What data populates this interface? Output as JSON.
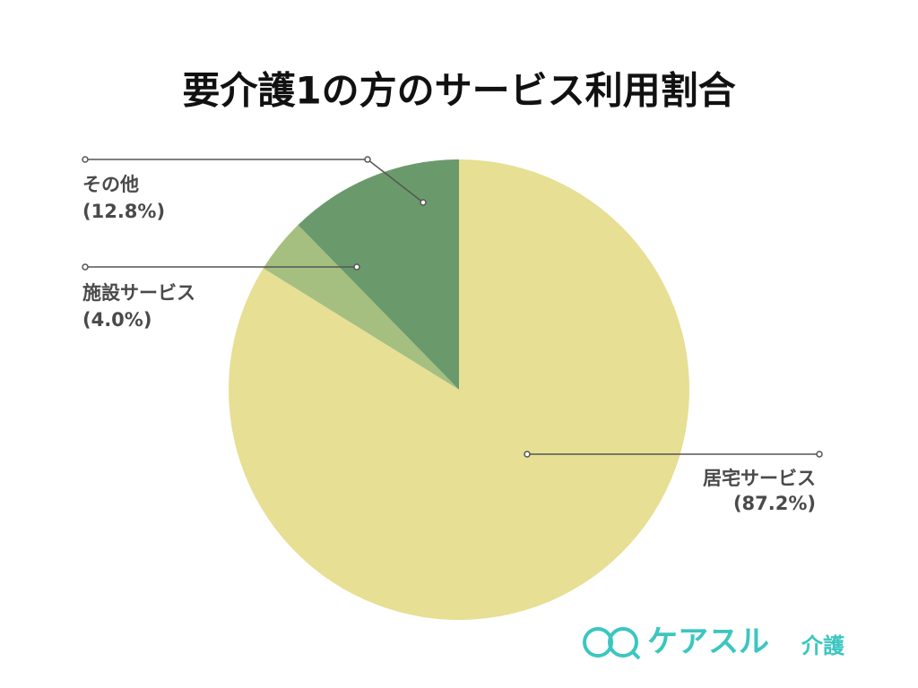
{
  "chart_data": {
    "type": "pie",
    "title": "要介護1の方のサービス利用割合",
    "categories": [
      "居宅サービス",
      "施設サービス",
      "その他"
    ],
    "values": [
      87.2,
      4.0,
      12.8
    ],
    "value_labels": [
      "(87.2%)",
      "(4.0%)",
      "(12.8%)"
    ],
    "colors": [
      "#e6df94",
      "#a5bf80",
      "#6a9a6b"
    ]
  },
  "logo": {
    "name": "ケアスル",
    "sub": "介護"
  }
}
